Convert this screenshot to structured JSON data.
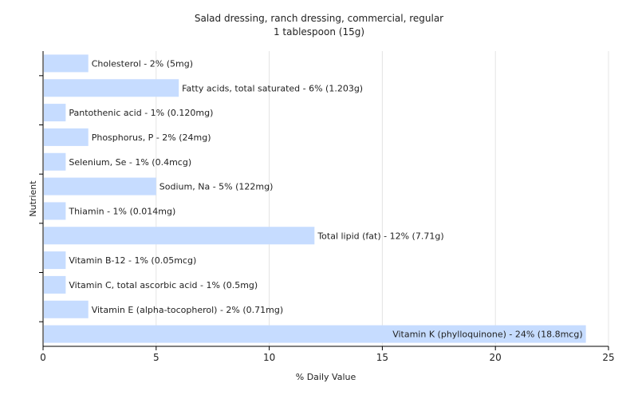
{
  "chart_data": {
    "type": "bar",
    "orientation": "horizontal",
    "title": "Salad dressing, ranch dressing, commercial, regular",
    "subtitle": "1 tablespoon (15g)",
    "xlabel": "% Daily Value",
    "ylabel": "Nutrient",
    "xlim": [
      0,
      25
    ],
    "xticks": [
      0,
      5,
      10,
      15,
      20,
      25
    ],
    "grid": true,
    "bar_color": "#c6dcff",
    "categories": [
      "Cholesterol",
      "Fatty acids, total saturated",
      "Pantothenic acid",
      "Phosphorus, P",
      "Selenium, Se",
      "Sodium, Na",
      "Thiamin",
      "Total lipid (fat)",
      "Vitamin B-12",
      "Vitamin C, total ascorbic acid",
      "Vitamin E (alpha-tocopherol)",
      "Vitamin K (phylloquinone)"
    ],
    "values": [
      2,
      6,
      1,
      2,
      1,
      5,
      1,
      12,
      1,
      1,
      2,
      24
    ],
    "labels": [
      "Cholesterol - 2% (5mg)",
      "Fatty acids, total saturated - 6% (1.203g)",
      "Pantothenic acid - 1% (0.120mg)",
      "Phosphorus, P - 2% (24mg)",
      "Selenium, Se - 1% (0.4mcg)",
      "Sodium, Na - 5% (122mg)",
      "Thiamin - 1% (0.014mg)",
      "Total lipid (fat) - 12% (7.71g)",
      "Vitamin B-12 - 1% (0.05mcg)",
      "Vitamin C, total ascorbic acid - 1% (0.5mg)",
      "Vitamin E (alpha-tocopherol) - 2% (0.71mg)",
      "Vitamin K (phylloquinone) - 24% (18.8mcg)"
    ]
  }
}
